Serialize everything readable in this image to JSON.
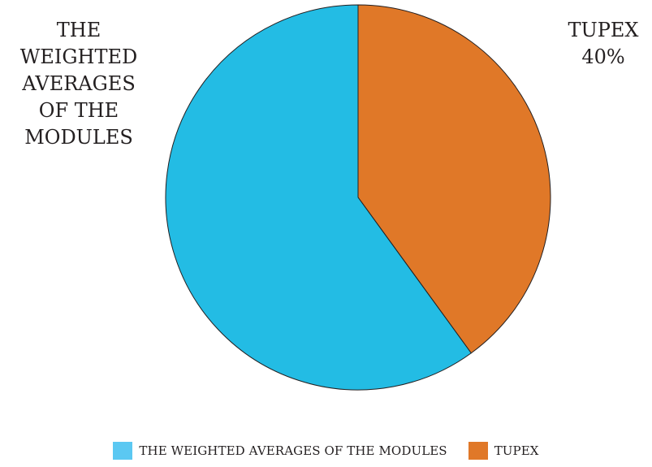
{
  "chart_data": {
    "type": "pie",
    "slices": [
      {
        "label": "THE WEIGHTED AVERAGES OF THE MODULES",
        "label_lines": [
          "THE",
          "WEIGHTED",
          "AVERAGES",
          "OF THE",
          "MODULES"
        ],
        "value": 60,
        "color": "#23bce4"
      },
      {
        "label": "TUPEX",
        "label_lines": [
          "TUPEX",
          "40%"
        ],
        "value": 40,
        "color": "#e07828"
      }
    ],
    "legend": {
      "placement": "bottom",
      "entries": [
        {
          "label": "THE WEIGHTED AVERAGES OF THE MODULES",
          "color": "#5bc8f2"
        },
        {
          "label": "TUPEX",
          "color": "#e07828"
        }
      ]
    }
  }
}
